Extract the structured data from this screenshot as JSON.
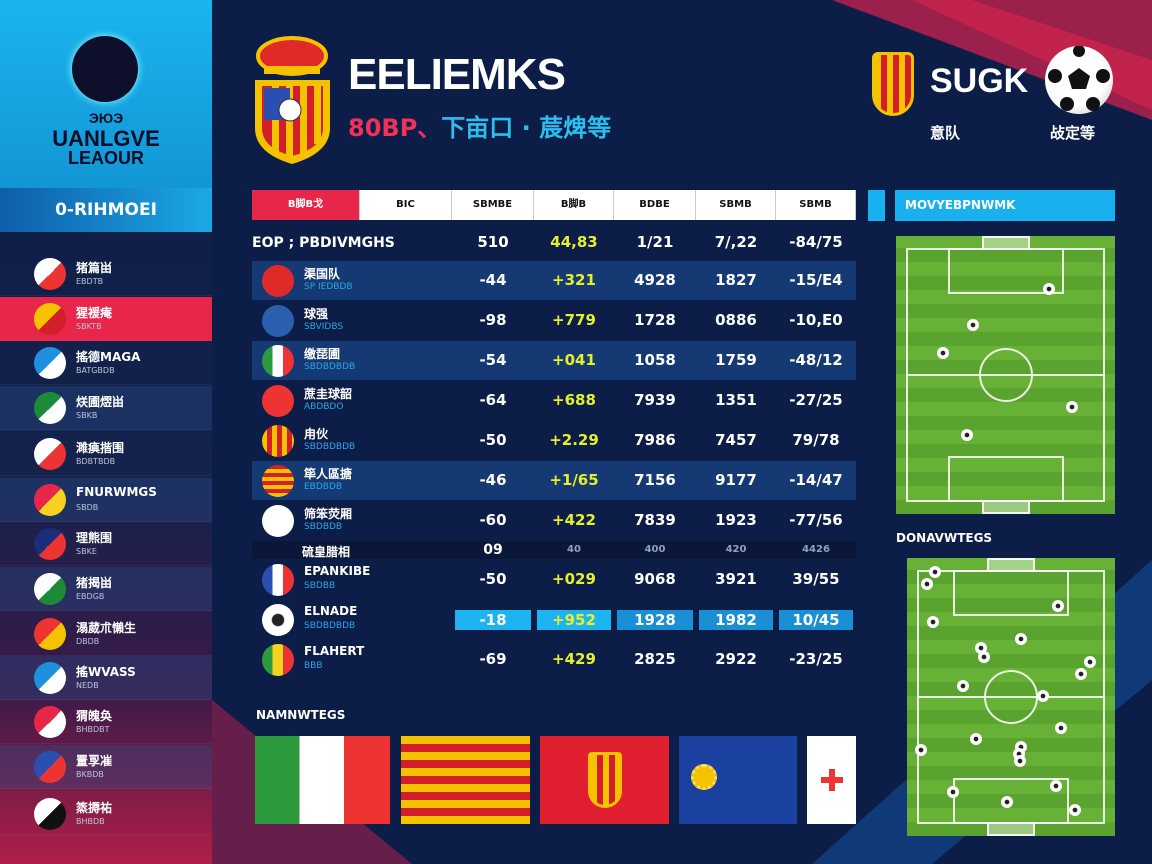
{
  "sidebar": {
    "logo": {
      "top": "ЭЮЭ",
      "line1": "UANLGVE",
      "line2": "LEAOUR"
    },
    "section_title": "0-RIHMOEI",
    "items": [
      {
        "name": "猪篇畄",
        "sub": "EBDTB",
        "icon": "red-cross-crest-icon",
        "colors": [
          "#fff",
          "#e33"
        ]
      },
      {
        "name": "猩褑痷",
        "sub": "SBKTB",
        "icon": "catalan-crest-icon",
        "colors": [
          "#f5c200",
          "#d41e2a"
        ],
        "active": true
      },
      {
        "name": "搖德MAGA",
        "sub": "BATGBDB",
        "icon": "blue-figure-crest-icon",
        "colors": [
          "#1f8fe0",
          "#fff"
        ]
      },
      {
        "name": "烪圃熤畄",
        "sub": "SBKB",
        "icon": "green-hand-crest-icon",
        "colors": [
          "#1d8a3a",
          "#fff"
        ]
      },
      {
        "name": "濉痶揩围",
        "sub": "BDBTBDB",
        "icon": "checkered-crest-icon",
        "colors": [
          "#fff",
          "#e33"
        ]
      },
      {
        "name": "FNURWMGS",
        "sub": "SBDB",
        "icon": "swiss-shield-icon",
        "colors": [
          "#e8264a",
          "#f7d21e"
        ]
      },
      {
        "name": "理熊围",
        "sub": "SBKE",
        "icon": "union-jack-icon",
        "colors": [
          "#1a2e7a",
          "#e33"
        ]
      },
      {
        "name": "猪揭畄",
        "sub": "EBDGB",
        "icon": "green-white-crest-icon",
        "colors": [
          "#fff",
          "#1d8a3a"
        ]
      },
      {
        "name": "溻葳朮懶生",
        "sub": "DBDB",
        "icon": "crown-crest-icon",
        "colors": [
          "#e33",
          "#f5c200"
        ]
      },
      {
        "name": "搖WVASS",
        "sub": "NEDB",
        "icon": "blue-cross-crest-icon",
        "colors": [
          "#1f8fe0",
          "#fff"
        ]
      },
      {
        "name": "猬魄奂",
        "sub": "BHBDBT",
        "icon": "heart-icon",
        "colors": [
          "#e8264a",
          "#fff"
        ]
      },
      {
        "name": "罿孠凗",
        "sub": "BKBDB",
        "icon": "stars-stripes-icon",
        "colors": [
          "#2a4fb0",
          "#e33"
        ]
      },
      {
        "name": "篜搙祐",
        "sub": "BHBDB",
        "icon": "soccer-ball-icon",
        "colors": [
          "#fff",
          "#111"
        ]
      }
    ]
  },
  "header": {
    "title": "EELIEMKS",
    "subtitle_a": "80BP、",
    "subtitle_b": "下亩口 · 莀焷等"
  },
  "table": {
    "columns": [
      "B脚B戈",
      "BIC",
      "SBMBE",
      "B脚B",
      "BDBE",
      "SBMB",
      "SBMB"
    ],
    "rows": [
      {
        "name": "EOP ; PBDIVMGHS",
        "sub": "",
        "icon": "",
        "values": [
          "510",
          "44,83",
          "1/21",
          "7/,22",
          "-84/75"
        ],
        "style": "summary"
      },
      {
        "name": "渠国队",
        "sub": "SP IEDBDB",
        "icon": "red-trophy-crest-icon",
        "values": [
          "-44",
          "+321",
          "4928",
          "1827",
          "-15/E4"
        ],
        "style": "alt"
      },
      {
        "name": "球强",
        "sub": "SBVIDBS",
        "icon": "blue-striped-crest-icon",
        "values": [
          "-98",
          "+779",
          "1728",
          "0886",
          "-10,E0"
        ],
        "style": ""
      },
      {
        "name": "缴琵圃",
        "sub": "SBDBDBDB",
        "icon": "italy-flag-shield-icon",
        "values": [
          "-54",
          "+041",
          "1058",
          "1759",
          "-48/12"
        ],
        "style": "alt"
      },
      {
        "name": "蔗圭球韶",
        "sub": "ABDBDO",
        "icon": "red-cross-icon",
        "values": [
          "-64",
          "+688",
          "7939",
          "1351",
          "-27/25"
        ],
        "style": ""
      },
      {
        "name": "甪伙",
        "sub": "SBDBDBDB",
        "icon": "catalan-crest-icon",
        "values": [
          "-50",
          "+2.29",
          "7986",
          "7457",
          "79/78"
        ],
        "style": ""
      },
      {
        "name": "筚人區搪",
        "sub": "EBDBDB",
        "icon": "striped-ball-icon",
        "values": [
          "-46",
          "+1/65",
          "7156",
          "9177",
          "-14/47"
        ],
        "style": "alt"
      },
      {
        "name": "筛笨荧厢",
        "sub": "SBDBDB",
        "icon": "white-cross-icon",
        "values": [
          "-60",
          "+422",
          "7839",
          "1923",
          "-77/56"
        ],
        "style": ""
      },
      {
        "name": "硫皇腊相",
        "sub": "",
        "icon": "",
        "values": [
          "09",
          "40",
          "400",
          "420",
          "4426"
        ],
        "style": "thin"
      },
      {
        "name": "EPANKIBE",
        "sub": "SBDBB",
        "icon": "france-flag-shield-icon",
        "values": [
          "-50",
          "+029",
          "9068",
          "3921",
          "39/55"
        ],
        "style": ""
      },
      {
        "name": "ELNADE",
        "sub": "SBDBDBDB",
        "icon": "soccer-ball-icon",
        "values": [
          "-18",
          "+952",
          "1928",
          "1982",
          "10/45"
        ],
        "style": "highlight"
      },
      {
        "name": "FLAHERT",
        "sub": "BBB",
        "icon": "green-yellow-shield-icon",
        "values": [
          "-69",
          "+429",
          "2825",
          "2922",
          "-23/25"
        ],
        "style": ""
      }
    ]
  },
  "bottom": {
    "label": "NAMNWTEGS",
    "flags": [
      "italy-flag",
      "catalan-stripes-flag",
      "red-crest-flag",
      "blue-sun-flag",
      "white-red-cross-flag"
    ]
  },
  "right": {
    "title": "SUGK",
    "sub_left": "意队",
    "sub_right": "敁定等",
    "panel_title": "MOVYEBPNWMK",
    "pitch2_label": "DONAVWTEGS"
  },
  "colors": {
    "accent_red": "#e8264a",
    "accent_cyan": "#19b0ef",
    "navy": "#0c1d48",
    "highlight_yellow": "#e6f02a"
  }
}
